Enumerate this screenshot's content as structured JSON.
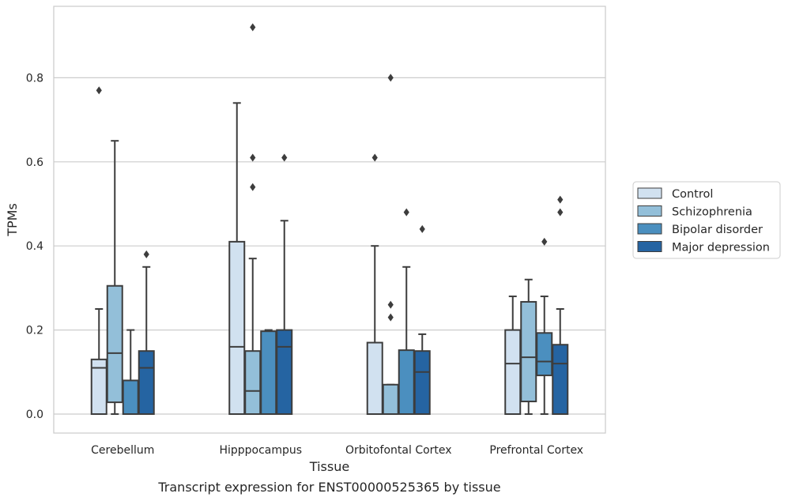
{
  "chart_data": {
    "type": "boxplot",
    "title": "",
    "xlabel": "Tissue",
    "ylabel": "TPMs",
    "caption": "Transcript expression for ENST00000525365 by tissue",
    "ylim": [
      -0.045,
      0.97
    ],
    "yticks": [
      "0.0",
      "0.2",
      "0.4",
      "0.6",
      "0.8"
    ],
    "grid": "horizontal",
    "legend_position": "right",
    "categories": [
      "Cerebellum",
      "Hipppocampus",
      "Orbitofontal Cortex",
      "Prefrontal Cortex"
    ],
    "series": [
      {
        "name": "Control",
        "color": "#d1e1f0",
        "boxes": [
          {
            "min": 0.0,
            "q1": 0.0,
            "median": 0.11,
            "q3": 0.13,
            "max": 0.25,
            "outliers": [
              0.77
            ]
          },
          {
            "min": 0.0,
            "q1": 0.0,
            "median": 0.16,
            "q3": 0.41,
            "max": 0.74,
            "outliers": []
          },
          {
            "min": 0.0,
            "q1": 0.0,
            "median": 0.0,
            "q3": 0.17,
            "max": 0.4,
            "outliers": [
              0.61
            ]
          },
          {
            "min": 0.0,
            "q1": 0.0,
            "median": 0.12,
            "q3": 0.2,
            "max": 0.28,
            "outliers": []
          }
        ]
      },
      {
        "name": "Schizophrenia",
        "color": "#93bfd9",
        "boxes": [
          {
            "min": 0.0,
            "q1": 0.028,
            "median": 0.145,
            "q3": 0.305,
            "max": 0.65,
            "outliers": []
          },
          {
            "min": 0.0,
            "q1": 0.0,
            "median": 0.055,
            "q3": 0.15,
            "max": 0.37,
            "outliers": [
              0.92,
              0.61,
              0.54
            ]
          },
          {
            "min": 0.0,
            "q1": 0.0,
            "median": 0.0,
            "q3": 0.07,
            "max": 0.07,
            "outliers": [
              0.8,
              0.26,
              0.23
            ]
          },
          {
            "min": 0.0,
            "q1": 0.03,
            "median": 0.135,
            "q3": 0.267,
            "max": 0.32,
            "outliers": []
          }
        ]
      },
      {
        "name": "Bipolar disorder",
        "color": "#4b8fbf",
        "boxes": [
          {
            "min": 0.0,
            "q1": 0.0,
            "median": 0.0,
            "q3": 0.08,
            "max": 0.2,
            "outliers": []
          },
          {
            "min": 0.0,
            "q1": 0.0,
            "median": 0.0,
            "q3": 0.197,
            "max": 0.2,
            "outliers": []
          },
          {
            "min": 0.0,
            "q1": 0.0,
            "median": 0.0,
            "q3": 0.152,
            "max": 0.35,
            "outliers": [
              0.48
            ]
          },
          {
            "min": 0.0,
            "q1": 0.092,
            "median": 0.125,
            "q3": 0.193,
            "max": 0.28,
            "outliers": [
              0.41
            ]
          }
        ]
      },
      {
        "name": "Major depression",
        "color": "#2564a2",
        "boxes": [
          {
            "min": 0.0,
            "q1": 0.0,
            "median": 0.11,
            "q3": 0.15,
            "max": 0.35,
            "outliers": [
              0.38
            ]
          },
          {
            "min": 0.0,
            "q1": 0.0,
            "median": 0.16,
            "q3": 0.2,
            "max": 0.46,
            "outliers": [
              0.61
            ]
          },
          {
            "min": 0.0,
            "q1": 0.0,
            "median": 0.1,
            "q3": 0.15,
            "max": 0.19,
            "outliers": [
              0.44
            ]
          },
          {
            "min": 0.0,
            "q1": 0.0,
            "median": 0.12,
            "q3": 0.165,
            "max": 0.25,
            "outliers": [
              0.51,
              0.48
            ]
          }
        ]
      }
    ]
  }
}
